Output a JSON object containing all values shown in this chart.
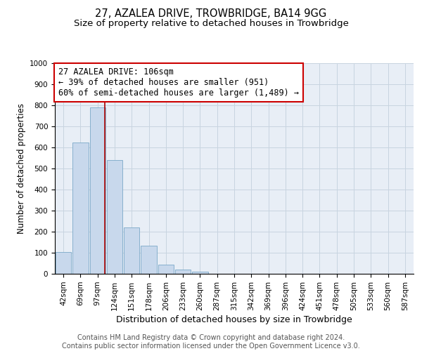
{
  "title_line1": "27, AZALEA DRIVE, TROWBRIDGE, BA14 9GG",
  "title_line2": "Size of property relative to detached houses in Trowbridge",
  "xlabel": "Distribution of detached houses by size in Trowbridge",
  "ylabel": "Number of detached properties",
  "categories": [
    "42sqm",
    "69sqm",
    "97sqm",
    "124sqm",
    "151sqm",
    "178sqm",
    "206sqm",
    "233sqm",
    "260sqm",
    "287sqm",
    "315sqm",
    "342sqm",
    "369sqm",
    "396sqm",
    "424sqm",
    "451sqm",
    "478sqm",
    "505sqm",
    "533sqm",
    "560sqm",
    "587sqm"
  ],
  "bar_values": [
    103,
    625,
    790,
    540,
    220,
    135,
    45,
    20,
    10,
    0,
    0,
    0,
    0,
    0,
    0,
    0,
    0,
    0,
    0,
    0,
    0
  ],
  "bar_color": "#c8d8ec",
  "bar_edge_color": "#7aa8c8",
  "ylim": [
    0,
    1000
  ],
  "yticks": [
    0,
    100,
    200,
    300,
    400,
    500,
    600,
    700,
    800,
    900,
    1000
  ],
  "property_label": "27 AZALEA DRIVE: 106sqm",
  "annotation_line1": "← 39% of detached houses are smaller (951)",
  "annotation_line2": "60% of semi-detached houses are larger (1,489) →",
  "vline_pos": 2.42,
  "vline_color": "#aa0000",
  "annotation_box_facecolor": "#ffffff",
  "annotation_box_edgecolor": "#cc0000",
  "grid_color": "#c8d4e0",
  "background_color": "#e8eef6",
  "footer_line1": "Contains HM Land Registry data © Crown copyright and database right 2024.",
  "footer_line2": "Contains public sector information licensed under the Open Government Licence v3.0.",
  "title_fontsize": 10.5,
  "subtitle_fontsize": 9.5,
  "xlabel_fontsize": 9,
  "ylabel_fontsize": 8.5,
  "tick_fontsize": 7.5,
  "annotation_fontsize": 8.5,
  "footer_fontsize": 7
}
